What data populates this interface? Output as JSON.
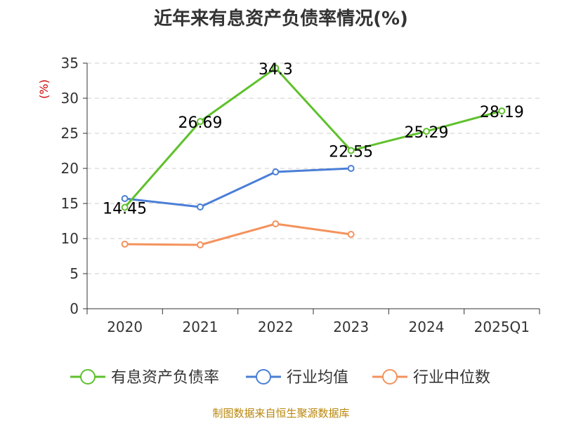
{
  "title": "近年来有息资产负债率情况(%)",
  "source_note": "制图数据来自恒生聚源数据库",
  "colors": {
    "series_main": "#5ec12b",
    "series_avg": "#4a7fd6",
    "series_median": "#f4925c",
    "axis": "#333333",
    "grid": "#cccccc",
    "ylabel": "#cc0000"
  },
  "chart_data": {
    "type": "line",
    "categories": [
      "2020",
      "2021",
      "2022",
      "2023",
      "2024",
      "2025Q1"
    ],
    "ylabel": "(%)",
    "ylim": [
      0,
      35
    ],
    "yticks": [
      0,
      5,
      10,
      15,
      20,
      25,
      30,
      35
    ],
    "grid": true,
    "legend_position": "bottom",
    "series": [
      {
        "name": "有息资产负债率",
        "values": [
          14.45,
          26.69,
          34.3,
          22.55,
          25.29,
          28.19
        ],
        "labels": [
          "14.45",
          "26.69",
          "34.3",
          "22.55",
          "25.29",
          "28.19"
        ],
        "show_labels": true
      },
      {
        "name": "行业均值",
        "values": [
          15.7,
          14.5,
          19.5,
          20.0,
          null,
          null
        ],
        "show_labels": false
      },
      {
        "name": "行业中位数",
        "values": [
          9.2,
          9.1,
          12.1,
          10.6,
          null,
          null
        ],
        "show_labels": false
      }
    ]
  }
}
